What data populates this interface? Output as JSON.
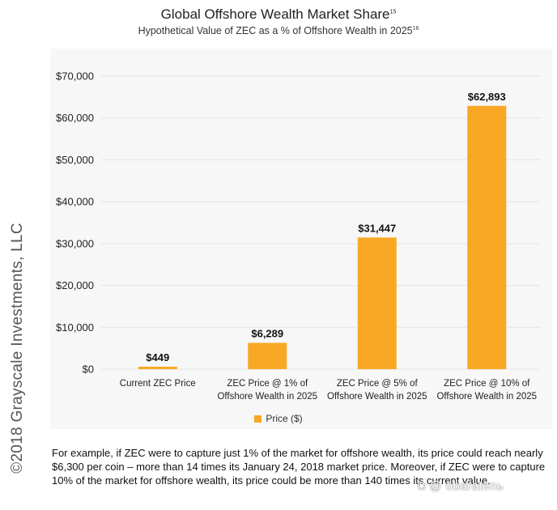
{
  "copyright": "©2018 Grayscale Investments, LLC",
  "title": {
    "text": "Global Offshore Wealth Market Share",
    "footnote": "15"
  },
  "subtitle": {
    "text": "Hypothetical Value of ZEC as a % of Offshore Wealth in 2025",
    "footnote": "16"
  },
  "chart_data": {
    "type": "bar",
    "categories": [
      [
        "Current ZEC Price"
      ],
      [
        "ZEC Price @ 1% of",
        "Offshore Wealth in 2025"
      ],
      [
        "ZEC Price @ 5% of",
        "Offshore Wealth in 2025"
      ],
      [
        "ZEC Price @ 10% of",
        "Offshore Wealth in 2025"
      ]
    ],
    "series": [
      {
        "name": "Price  ($)",
        "values": [
          449,
          6289,
          31447,
          62893
        ]
      }
    ],
    "data_labels": [
      "$449",
      "$6,289",
      "$31,447",
      "$62,893"
    ],
    "ylim": [
      0,
      70000
    ],
    "yticks": [
      0,
      10000,
      20000,
      30000,
      40000,
      50000,
      60000,
      70000
    ],
    "ytick_labels": [
      "$0",
      "$10,000",
      "$20,000",
      "$30,000",
      "$40,000",
      "$50,000",
      "$60,000",
      "$70,000"
    ],
    "grid": true,
    "legend_position": "bottom-center",
    "bar_color": "#F9A825",
    "grid_color": "#e4e4e4"
  },
  "footer": "For example, if ZEC were to capture just 1% of the market for offshore wealth, its price could reach nearly $6,300 per coin – more than 14 times its January 24, 2018 market price.  Moreover, if ZEC were to capture 10% of the market for offshore wealth, its price could be more than 140 times its current value.",
  "watermark": {
    "icon": "paw-icon",
    "text": "@ obaratenь"
  }
}
